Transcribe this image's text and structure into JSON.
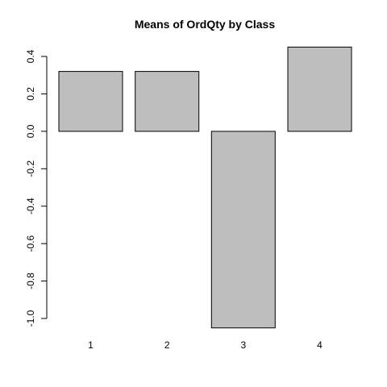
{
  "chart_data": {
    "type": "bar",
    "title": "Means of OrdQty by Class",
    "xlabel": "",
    "ylabel": "",
    "categories": [
      "1",
      "2",
      "3",
      "4"
    ],
    "values": [
      0.32,
      0.32,
      -1.05,
      0.45
    ],
    "ylim": [
      -1.0,
      0.4
    ],
    "y_ticks": [
      -1.0,
      -0.8,
      -0.6,
      -0.4,
      -0.2,
      0.0,
      0.2,
      0.4
    ],
    "y_tick_labels": [
      "-1.0",
      "-0.8",
      "-0.6",
      "-0.4",
      "-0.2",
      "0.0",
      "0.2",
      "0.4"
    ],
    "bar_color": "#bebebe",
    "grid": false,
    "legend": "none"
  }
}
